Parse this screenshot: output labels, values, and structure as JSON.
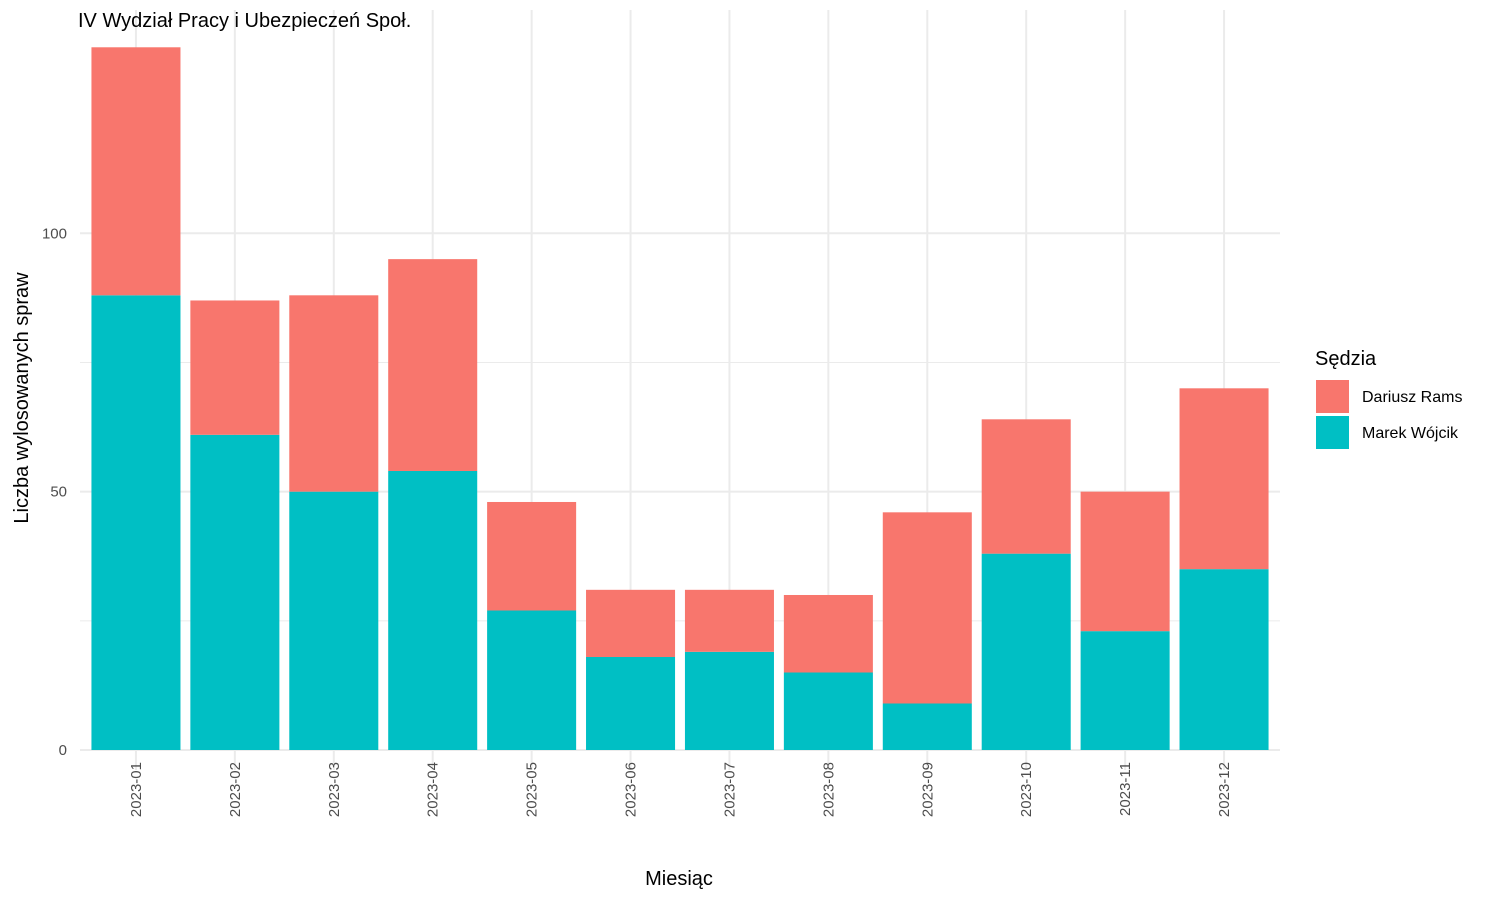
{
  "chart_data": {
    "type": "bar",
    "stacked": true,
    "title": "IV Wydział Pracy i Ubezpieczeń Społ.",
    "xlabel": "Miesiąc",
    "ylabel": "Liczba wylosowanych spraw",
    "categories": [
      "2023-01",
      "2023-02",
      "2023-03",
      "2023-04",
      "2023-05",
      "2023-06",
      "2023-07",
      "2023-08",
      "2023-09",
      "2023-10",
      "2023-11",
      "2023-12"
    ],
    "series": [
      {
        "name": "Marek Wójcik",
        "color": "#00BFC4",
        "values": [
          88,
          61,
          50,
          54,
          27,
          18,
          19,
          15,
          9,
          38,
          23,
          35
        ]
      },
      {
        "name": "Dariusz Rams",
        "color": "#F8766D",
        "values": [
          48,
          26,
          38,
          41,
          21,
          13,
          12,
          15,
          37,
          26,
          27,
          35
        ]
      }
    ],
    "ylim": [
      0,
      140
    ],
    "yticks": [
      "0",
      "50",
      "100"
    ],
    "ytick_values": [
      0,
      50,
      100
    ],
    "grid": true,
    "legend": {
      "title": "Sędzia",
      "placement": "right",
      "entries": [
        {
          "name": "Dariusz Rams",
          "color": "#F8766D"
        },
        {
          "name": "Marek Wójcik",
          "color": "#00BFC4"
        }
      ]
    }
  }
}
